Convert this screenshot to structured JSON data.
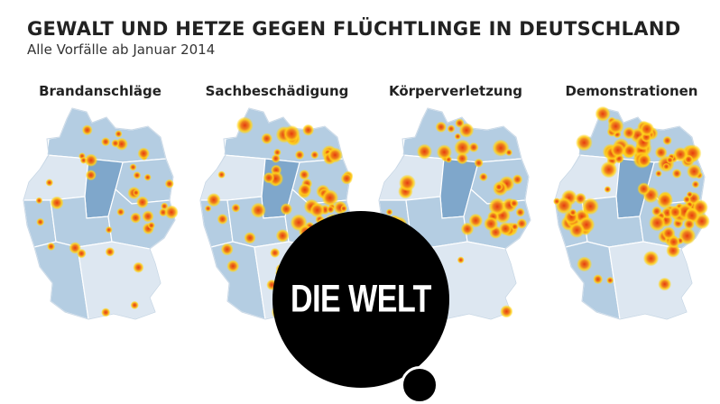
{
  "header": {
    "title": "GEWALT UND HETZE GEGEN FLÜCHTLINGE IN DEUTSCHLAND",
    "subtitle": "Alle Vorfälle ab Januar 2014"
  },
  "colors": {
    "state_light": "#dde7f1",
    "state_mid": "#b4cde2",
    "state_dark": "#7fa7cb",
    "hotspot_outer": "#ffd21a",
    "hotspot_core": "#e53b10",
    "brand": "#000000"
  },
  "maps": [
    {
      "id": "brandanschlaege",
      "label": "Brandanschläge",
      "hotspot_count": 38
    },
    {
      "id": "sachbeschaedigung",
      "label": "Sachbeschädigung",
      "hotspot_count": 72
    },
    {
      "id": "koerperverletzung",
      "label": "Körperverletzung",
      "hotspot_count": 46
    },
    {
      "id": "demonstrationen",
      "label": "Demonstrationen",
      "hotspot_count": 104
    }
  ],
  "logo": {
    "text": "DIE WELT"
  }
}
